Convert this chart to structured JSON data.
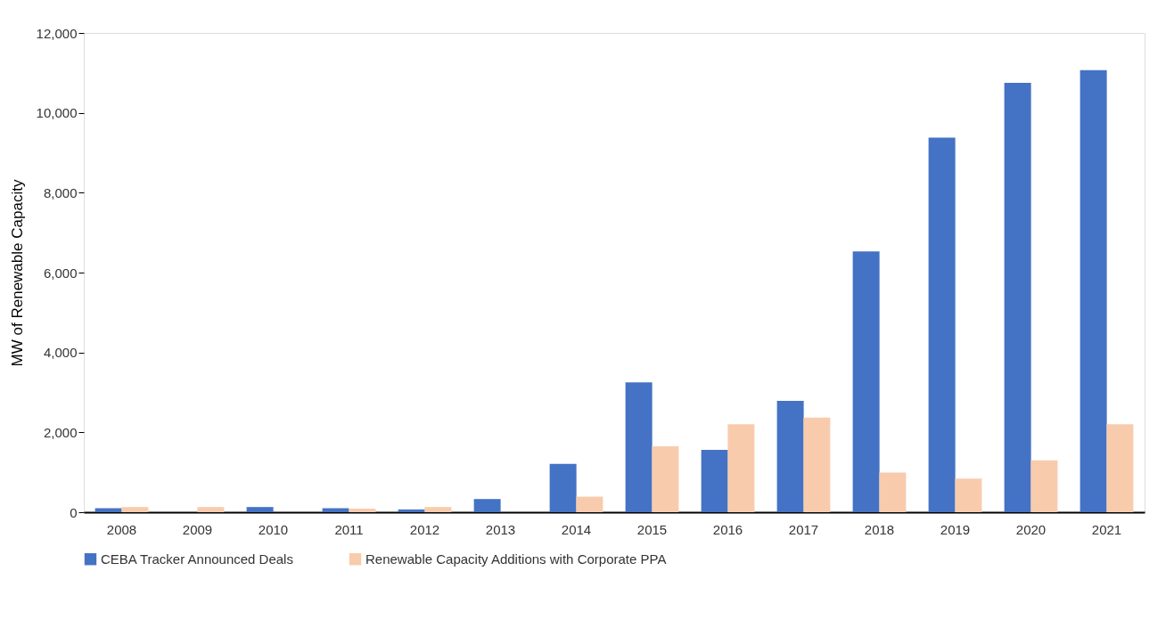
{
  "chart_data": {
    "type": "bar",
    "ylabel": "MW of Renewable Capacity",
    "categories": [
      "2008",
      "2009",
      "2010",
      "2011",
      "2012",
      "2013",
      "2014",
      "2015",
      "2016",
      "2017",
      "2018",
      "2019",
      "2020",
      "2021"
    ],
    "series": [
      {
        "name": "CEBA Tracker Announced Deals",
        "color": "#4472c4",
        "values": [
          100,
          null,
          130,
          100,
          70,
          330,
          1210,
          3250,
          1560,
          2790,
          6530,
          9380,
          10750,
          11070
        ]
      },
      {
        "name": "Renewable Capacity Additions with Corporate PPA",
        "color": "#f8cbad",
        "values": [
          130,
          130,
          null,
          90,
          130,
          null,
          390,
          1650,
          2200,
          2370,
          990,
          840,
          1300,
          2200
        ]
      }
    ],
    "ylim": [
      0,
      12000
    ],
    "yticks": [
      {
        "value": 0,
        "label": "0"
      },
      {
        "value": 2000,
        "label": "2,000"
      },
      {
        "value": 4000,
        "label": "4,000"
      },
      {
        "value": 6000,
        "label": "6,000"
      },
      {
        "value": 8000,
        "label": "8,000"
      },
      {
        "value": 10000,
        "label": "10,000"
      },
      {
        "value": 12000,
        "label": "12,000"
      }
    ],
    "grid": false,
    "legend": "bottom"
  }
}
